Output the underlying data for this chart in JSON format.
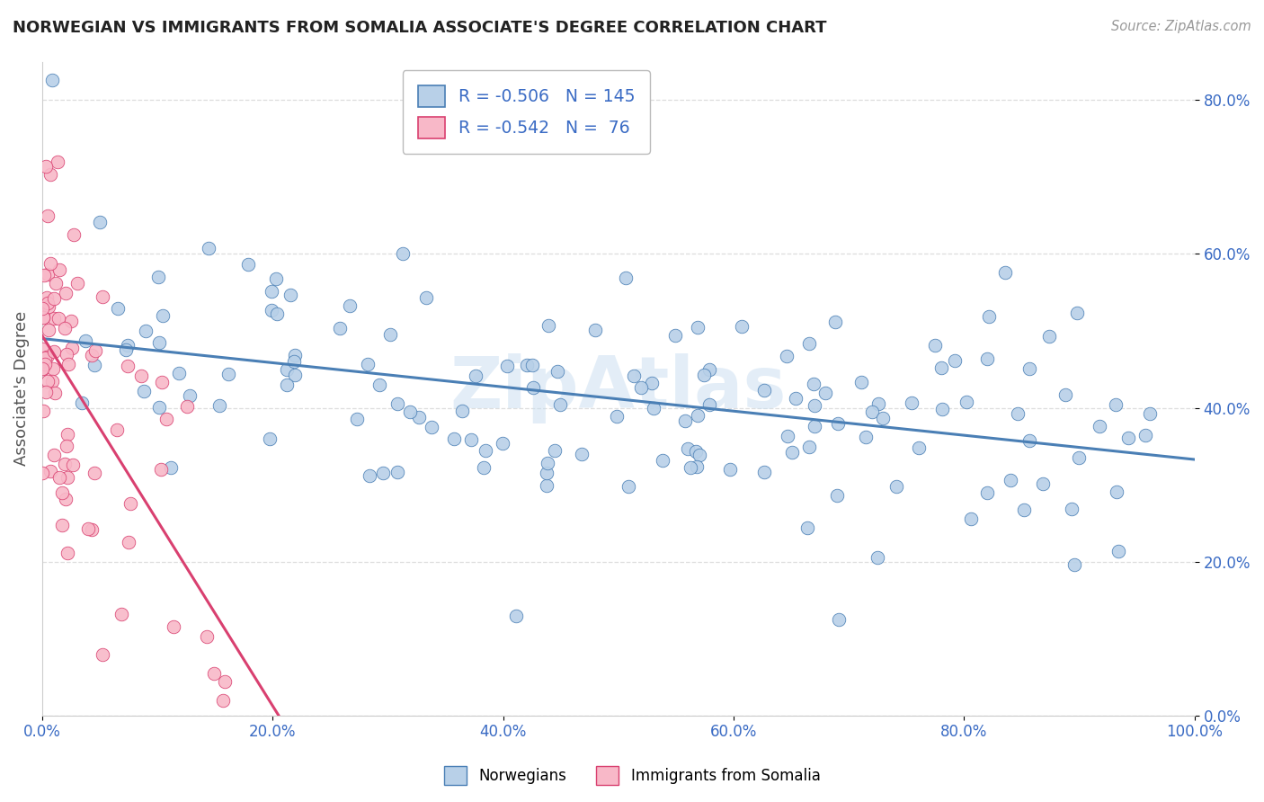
{
  "title": "NORWEGIAN VS IMMIGRANTS FROM SOMALIA ASSOCIATE'S DEGREE CORRELATION CHART",
  "source": "Source: ZipAtlas.com",
  "ylabel": "Associate's Degree",
  "xlabel": "",
  "blue_R": -0.506,
  "blue_N": 145,
  "pink_R": -0.542,
  "pink_N": 76,
  "blue_color": "#b8d0e8",
  "pink_color": "#f8b8c8",
  "blue_line_color": "#4a7fb5",
  "pink_line_color": "#d94070",
  "legend_label_blue": "Norwegians",
  "legend_label_pink": "Immigrants from Somalia",
  "watermark": "ZipAtlas",
  "background_color": "#ffffff",
  "grid_color": "#dddddd",
  "title_color": "#222222",
  "axis_label_color": "#555555",
  "tick_color": "#3a6bc4",
  "xlim": [
    0.0,
    1.0
  ],
  "ylim": [
    0.0,
    0.85
  ],
  "x_ticks": [
    0.0,
    0.2,
    0.4,
    0.6,
    0.8,
    1.0
  ],
  "x_tick_labels": [
    "0.0%",
    "20.0%",
    "40.0%",
    "60.0%",
    "80.0%",
    "100.0%"
  ],
  "y_ticks": [
    0.0,
    0.2,
    0.4,
    0.6,
    0.8
  ],
  "y_tick_labels": [
    "0.0%",
    "20.0%",
    "40.0%",
    "60.0%",
    "80.0%"
  ]
}
